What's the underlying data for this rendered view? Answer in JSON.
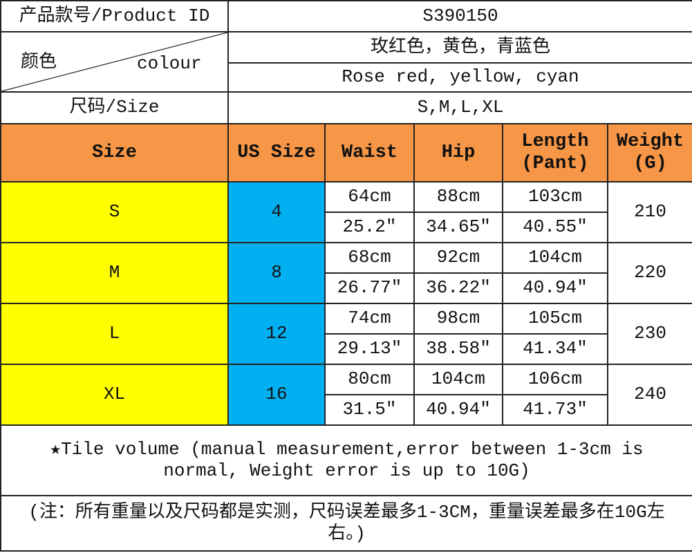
{
  "product": {
    "id_label": "产品款号/Product ID",
    "id_value": "S390150"
  },
  "colour": {
    "label_cn": "颜色",
    "label_en": "colour",
    "value_cn": "玫红色，黄色，青蓝色",
    "value_en": "Rose red, yellow, cyan"
  },
  "size_info": {
    "label": "尺码/Size",
    "value": "S,M,L,XL"
  },
  "table": {
    "headers": [
      "Size",
      "US Size",
      "Waist",
      "Hip",
      "Length (Pant)",
      "Weight (G)"
    ],
    "rows": [
      {
        "size": "S",
        "us": "4",
        "waist_cm": "64cm",
        "hip_cm": "88cm",
        "length_cm": "103cm",
        "waist_in": "25.2″",
        "hip_in": "34.65″",
        "length_in": "40.55″",
        "weight": "210"
      },
      {
        "size": "M",
        "us": "8",
        "waist_cm": "68cm",
        "hip_cm": "92cm",
        "length_cm": "104cm",
        "waist_in": "26.77″",
        "hip_in": "36.22″",
        "length_in": "40.94″",
        "weight": "220"
      },
      {
        "size": "L",
        "us": "12",
        "waist_cm": "74cm",
        "hip_cm": "98cm",
        "length_cm": "105cm",
        "waist_in": "29.13″",
        "hip_in": "38.58″",
        "length_in": "41.34″",
        "weight": "230"
      },
      {
        "size": "XL",
        "us": "16",
        "waist_cm": "80cm",
        "hip_cm": "104cm",
        "length_cm": "106cm",
        "waist_in": "31.5″",
        "hip_in": "40.94″",
        "length_in": "41.73″",
        "weight": "240"
      }
    ]
  },
  "notes": {
    "en": "★Tile volume (manual measurement,error between 1-3cm is normal, Weight error is up to 10G)",
    "cn": "(注：所有重量以及尺码都是实测，尺码误差最多1-3CM，重量误差最多在10G左右。)"
  },
  "colors": {
    "header": "#F79646",
    "size_col": "#FFFF00",
    "us_col": "#00B0F0"
  }
}
